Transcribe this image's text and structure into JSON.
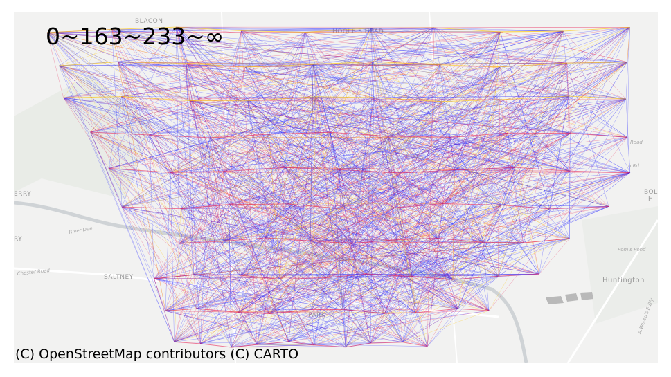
{
  "legend": {
    "title": "0~163~233~∞",
    "bins": [
      {
        "range": "0~163",
        "color": "#3030ff"
      },
      {
        "range": "163~233",
        "color": "#e0205a"
      },
      {
        "range": "233~∞",
        "color": "#ffc000"
      }
    ]
  },
  "attribution": "(C) OpenStreetMap contributors (C) CARTO",
  "basemap": {
    "style": "CARTO light",
    "labels": {
      "blacon": "BLACON",
      "heath": "HOOLE'S HEAD",
      "saltney": "SALTNEY",
      "huntington": "Huntington",
      "park": "PARK",
      "ferry": "ERRY",
      "ry": "RY",
      "boughton": "BOL",
      "h": "H",
      "chester_road": "Chester Road",
      "river_dee": "River Dee",
      "road": "Road",
      "rd": "n Rd",
      "pond": "Pom's Pond",
      "east": "A.Wixeu's E.Bly"
    }
  },
  "network": {
    "description": "flow lines between grid zone centroids",
    "colors": {
      "low": "#2a2aff",
      "mid": "#e8285a",
      "high": "#ffc400"
    }
  }
}
